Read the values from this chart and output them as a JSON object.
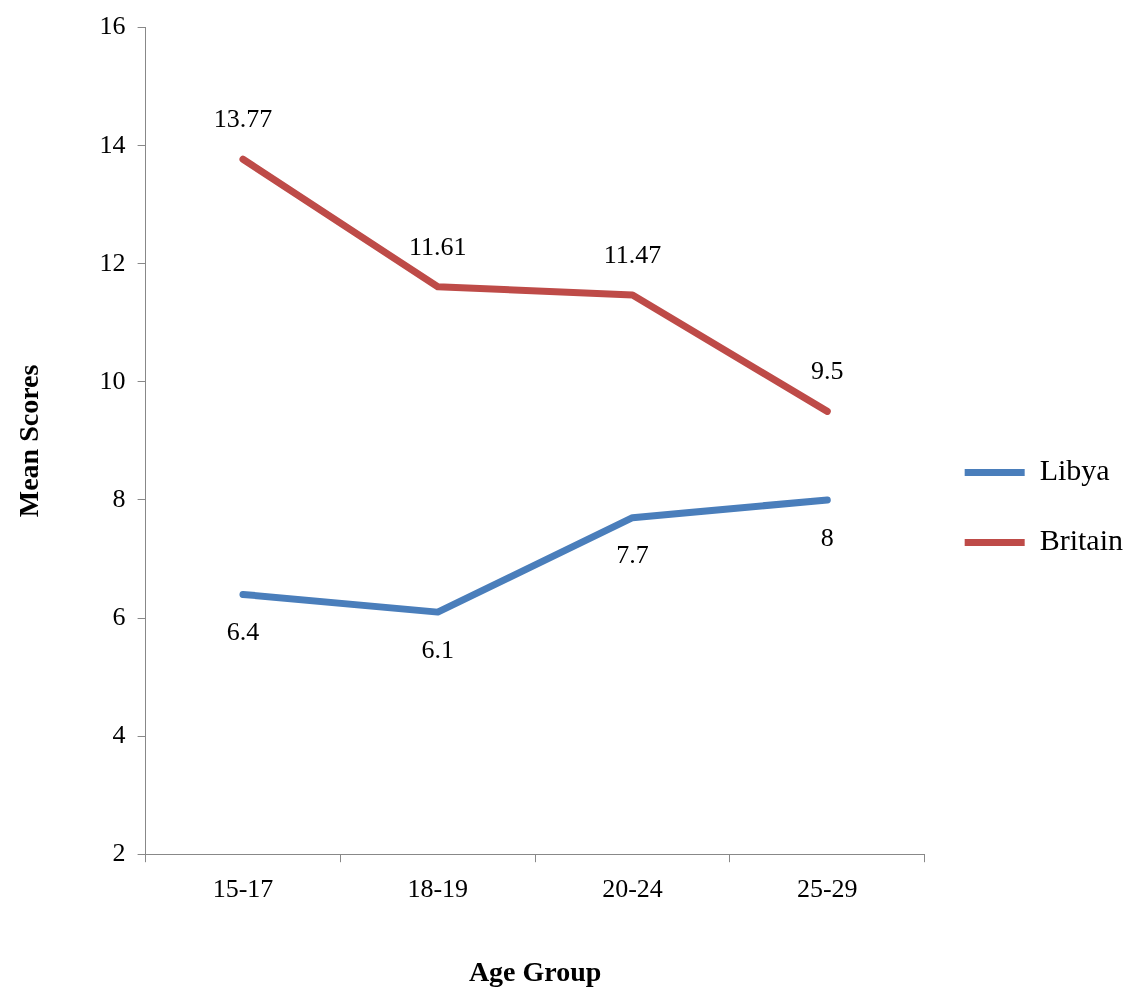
{
  "chart_data": {
    "type": "line",
    "xlabel": "Age Group",
    "ylabel": "Mean Scores",
    "categories": [
      "15-17",
      "18-19",
      "20-24",
      "25-29"
    ],
    "series": [
      {
        "name": "Libya",
        "color": "#4a7ebb",
        "values": [
          6.4,
          6.1,
          7.7,
          8
        ]
      },
      {
        "name": "Britain",
        "color": "#be4b48",
        "values": [
          13.77,
          11.61,
          11.47,
          9.5
        ]
      }
    ],
    "ylim": [
      2,
      16
    ],
    "yticks": [
      2,
      4,
      6,
      8,
      10,
      12,
      14,
      16
    ],
    "grid": false,
    "legend": "right",
    "marker": "none",
    "line_style": "solid",
    "data_labels": true
  }
}
